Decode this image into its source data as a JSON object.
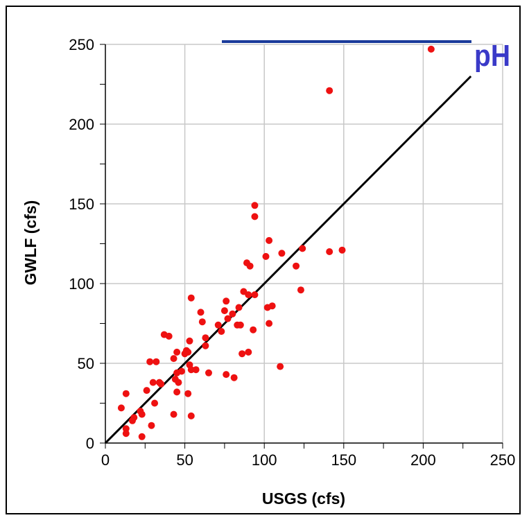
{
  "chart_data": {
    "type": "scatter",
    "title": "",
    "xlabel": "USGS (cfs)",
    "ylabel": "GWLF (cfs)",
    "xlim": [
      0,
      250
    ],
    "ylim": [
      0,
      250
    ],
    "xticks": [
      "0",
      "50",
      "100",
      "150",
      "200",
      "250"
    ],
    "yticks": [
      "0",
      "50",
      "100",
      "150",
      "200",
      "250"
    ],
    "grid": true,
    "series": [
      {
        "marker_color": "#ee1111",
        "points": [
          [
            205,
            247
          ],
          [
            141,
            221
          ],
          [
            94,
            149
          ],
          [
            94,
            142
          ],
          [
            103,
            127
          ],
          [
            149,
            121
          ],
          [
            141,
            120
          ],
          [
            124,
            122
          ],
          [
            111,
            119
          ],
          [
            101,
            117
          ],
          [
            120,
            111
          ],
          [
            89,
            113
          ],
          [
            91,
            111
          ],
          [
            123,
            96
          ],
          [
            87,
            95
          ],
          [
            90,
            93
          ],
          [
            94,
            93
          ],
          [
            76,
            89
          ],
          [
            54,
            91
          ],
          [
            105,
            86
          ],
          [
            102,
            85
          ],
          [
            84,
            85
          ],
          [
            75,
            83
          ],
          [
            80,
            81
          ],
          [
            60,
            82
          ],
          [
            77,
            78
          ],
          [
            61,
            76
          ],
          [
            103,
            75
          ],
          [
            83,
            74
          ],
          [
            85,
            74
          ],
          [
            71,
            74
          ],
          [
            73,
            70
          ],
          [
            93,
            71
          ],
          [
            37,
            68
          ],
          [
            40,
            67
          ],
          [
            63,
            66
          ],
          [
            53,
            64
          ],
          [
            63,
            61
          ],
          [
            51,
            58
          ],
          [
            45,
            57
          ],
          [
            52,
            57
          ],
          [
            50,
            56
          ],
          [
            86,
            56
          ],
          [
            90,
            57
          ],
          [
            43,
            53
          ],
          [
            28,
            51
          ],
          [
            32,
            51
          ],
          [
            53,
            49
          ],
          [
            110,
            48
          ],
          [
            54,
            46
          ],
          [
            57,
            46
          ],
          [
            45,
            44
          ],
          [
            48,
            45
          ],
          [
            65,
            44
          ],
          [
            76,
            43
          ],
          [
            81,
            41
          ],
          [
            44,
            40
          ],
          [
            34,
            38
          ],
          [
            46,
            38
          ],
          [
            30,
            38
          ],
          [
            35,
            37
          ],
          [
            26,
            33
          ],
          [
            45,
            32
          ],
          [
            52,
            31
          ],
          [
            13,
            31
          ],
          [
            31,
            25
          ],
          [
            10,
            22
          ],
          [
            22,
            20
          ],
          [
            23,
            18
          ],
          [
            43,
            18
          ],
          [
            54,
            17
          ],
          [
            18,
            16
          ],
          [
            17,
            14
          ],
          [
            29,
            11
          ],
          [
            13,
            9
          ],
          [
            13,
            6
          ],
          [
            23,
            4
          ]
        ]
      }
    ],
    "reference_line": {
      "from": [
        0,
        0
      ],
      "to": [
        230,
        230
      ],
      "color": "#000000"
    },
    "legend_line_color": "#1a3a9a",
    "logo_text": "pH",
    "logo_color": "#3a3ac8"
  }
}
